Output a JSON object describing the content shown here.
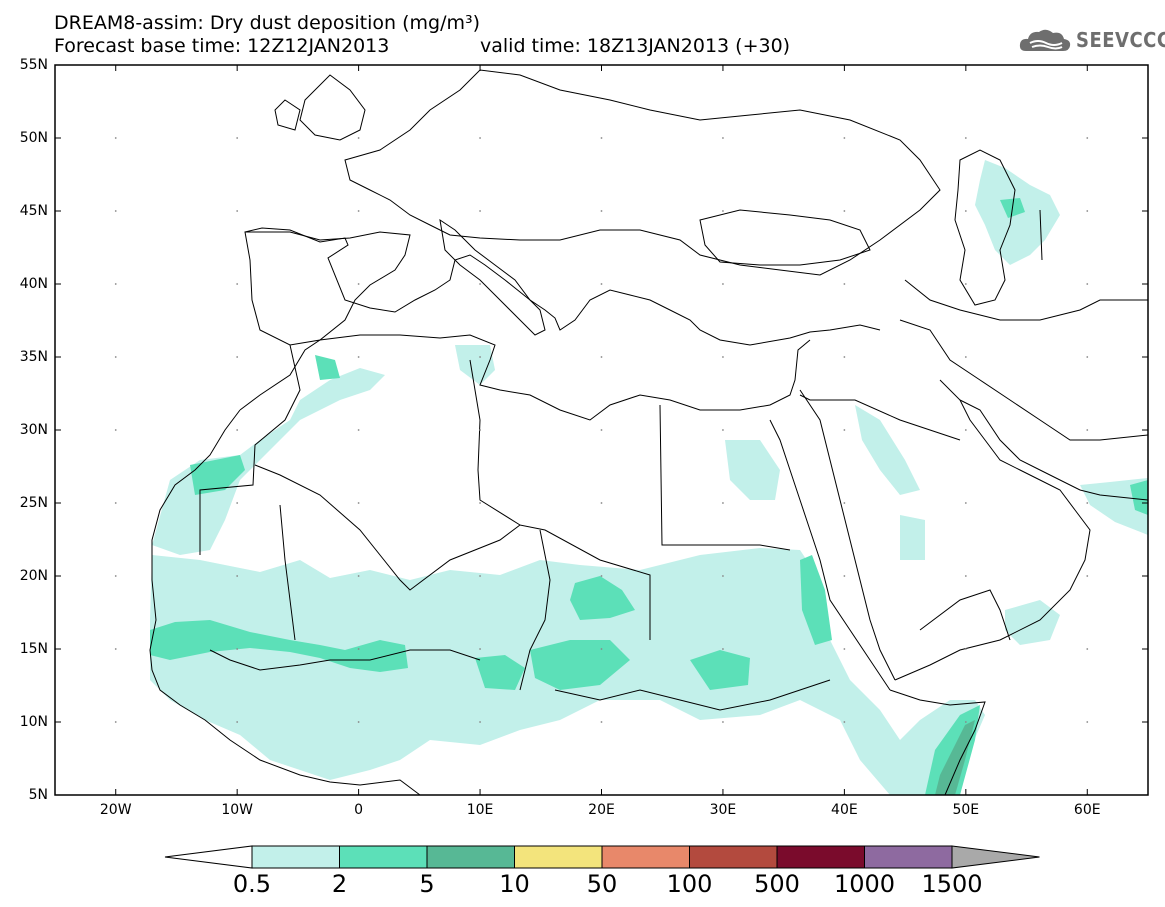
{
  "title": {
    "line1": "DREAM8-assim: Dry dust deposition (mg/m³)",
    "line2": "Forecast base time: 12Z12JAN2013",
    "line2_valid": "valid time: 18Z13JAN2013 (+30)"
  },
  "logo": {
    "text": "SEEVCCC",
    "icon": "cloud-icon"
  },
  "map": {
    "lon_range": [
      -25,
      65
    ],
    "lat_range": [
      5,
      55
    ],
    "lat_ticks": [
      "55N",
      "50N",
      "45N",
      "40N",
      "35N",
      "30N",
      "25N",
      "20N",
      "15N",
      "10N",
      "5N"
    ],
    "lon_ticks": [
      "20W",
      "10W",
      "0",
      "10E",
      "20E",
      "30E",
      "40E",
      "50E",
      "60E"
    ]
  },
  "colorbar": {
    "colors": [
      "#c2f0ea",
      "#5ce0b8",
      "#57b895",
      "#f3e47c",
      "#e8886a",
      "#b34a3e",
      "#7a0b2c",
      "#8e6aa0",
      "#a9a9a9"
    ],
    "labels": [
      "0.5",
      "2",
      "5",
      "10",
      "50",
      "100",
      "500",
      "1000",
      "1500"
    ],
    "unit": "mg/m³"
  }
}
